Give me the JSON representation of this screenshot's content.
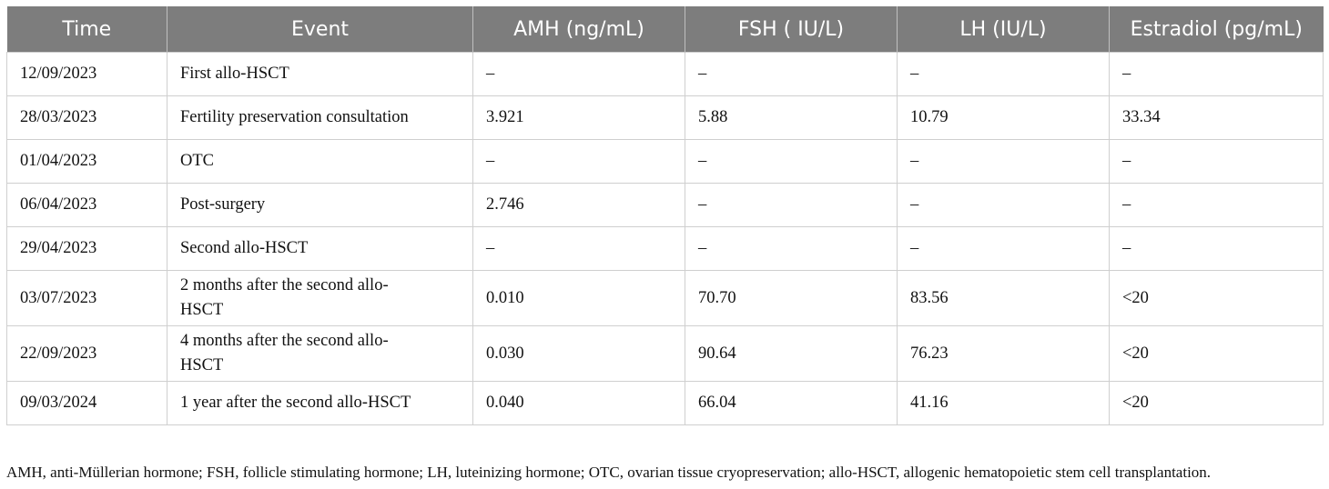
{
  "table": {
    "headers": [
      "Time",
      "Event",
      "AMH (ng/mL)",
      "FSH ( IU/L)",
      "LH (IU/L)",
      "Estradiol (pg/mL)"
    ],
    "rows": [
      [
        "12/09/2023",
        "First allo-HSCT",
        "–",
        "–",
        "–",
        "–"
      ],
      [
        "28/03/2023",
        "Fertility preservation consultation",
        "3.921",
        "5.88",
        "10.79",
        "33.34"
      ],
      [
        "01/04/2023",
        "OTC",
        "–",
        "–",
        "–",
        "–"
      ],
      [
        "06/04/2023",
        "Post-surgery",
        "2.746",
        "–",
        "–",
        "–"
      ],
      [
        "29/04/2023",
        "Second allo-HSCT",
        "–",
        "–",
        "–",
        "–"
      ],
      [
        "03/07/2023",
        "2 months after the second allo-HSCT",
        "0.010",
        "70.70",
        "83.56",
        "<20"
      ],
      [
        "22/09/2023",
        "4 months after the second allo-HSCT",
        "0.030",
        "90.64",
        "76.23",
        "<20"
      ],
      [
        "09/03/2024",
        "1 year after the second allo-HSCT",
        "0.040",
        "66.04",
        "41.16",
        "<20"
      ]
    ]
  },
  "footnote": "AMH, anti-Müllerian hormone; FSH, follicle stimulating hormone; LH, luteinizing hormone; OTC, ovarian tissue cryopreservation; allo-HSCT, allogenic hematopoietic stem cell transplantation."
}
